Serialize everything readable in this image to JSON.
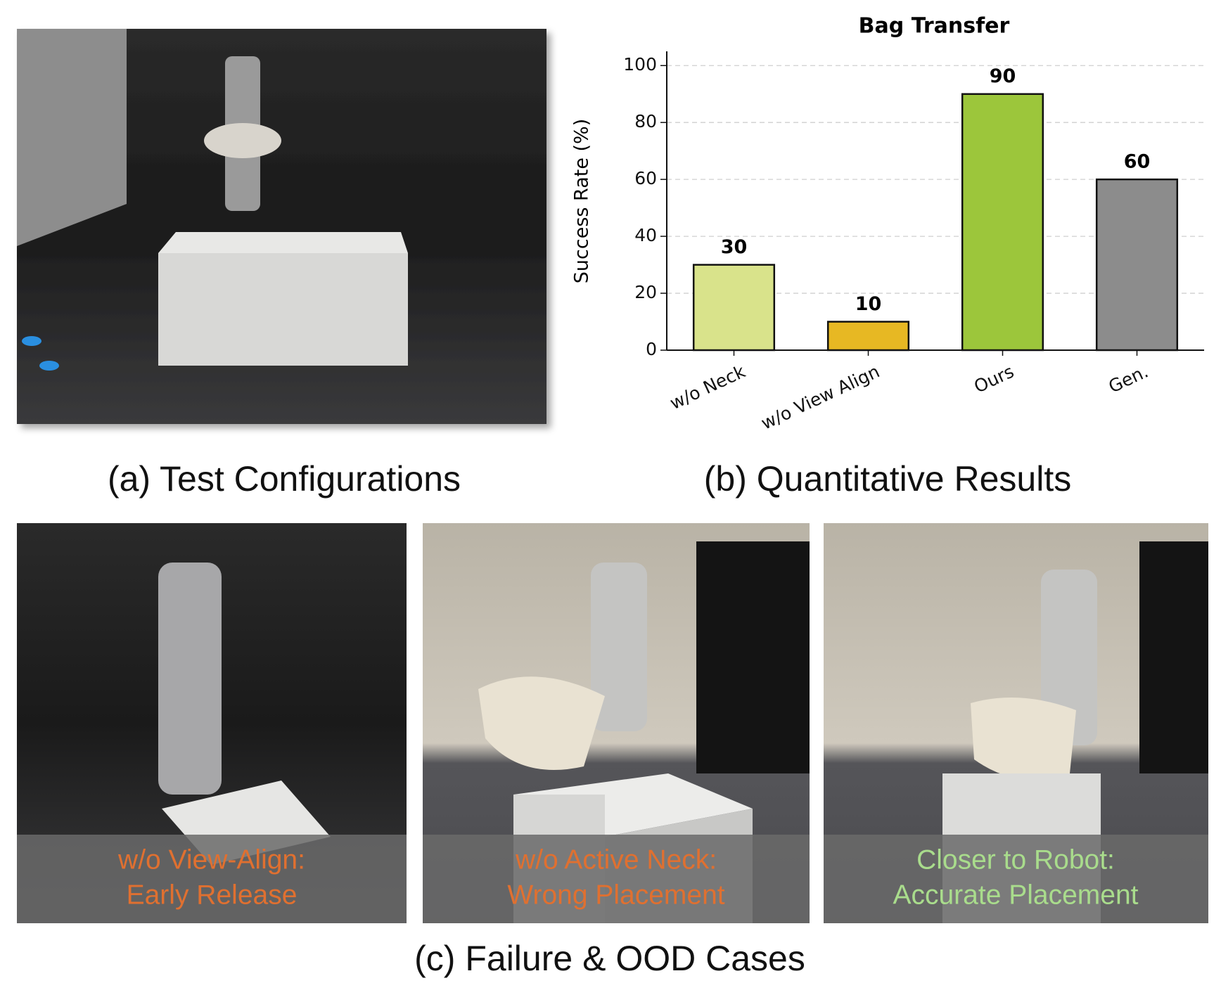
{
  "chart_data": {
    "type": "bar",
    "title": "Bag Transfer",
    "y_label": "Success Rate (%)",
    "categories": [
      "w/o Neck",
      "w/o View Align",
      "Ours",
      "Gen."
    ],
    "values": [
      30,
      10,
      90,
      60
    ],
    "colors": [
      "#d9e38b",
      "#e7b823",
      "#9cc63b",
      "#8c8c8c"
    ],
    "ylim": [
      0,
      105
    ],
    "yticks": [
      0,
      20,
      40,
      60,
      80,
      100
    ],
    "grid": true
  },
  "panels": {
    "a": {
      "caption": "(a) Test Configurations"
    },
    "b": {
      "caption": "(b) Quantitative Results"
    },
    "c": {
      "caption": "(c) Failure & OOD Cases",
      "cases": [
        {
          "lines": [
            "w/o View-Align:",
            "Early Release"
          ]
        },
        {
          "lines": [
            "w/o Active Neck:",
            "Wrong Placement"
          ]
        },
        {
          "lines": [
            "Closer to Robot:",
            "Accurate Placement"
          ]
        }
      ]
    }
  }
}
